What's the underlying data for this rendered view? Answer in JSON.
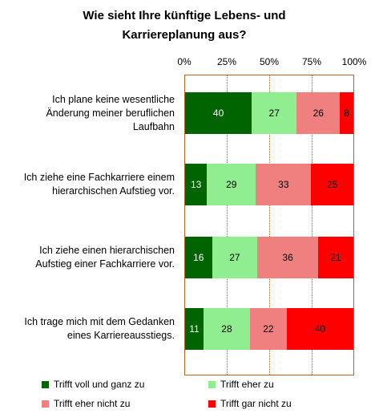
{
  "chart_data": {
    "type": "bar",
    "orientation": "horizontal",
    "stacked": true,
    "title": "Wie sieht Ihre künftige Lebens- und Karriereplanung aus?",
    "title_lines": [
      "Wie sieht Ihre künftige Lebens- und",
      "Karriereplanung aus?"
    ],
    "xlim": [
      0,
      100
    ],
    "x_ticks": [
      "0%",
      "25%",
      "50%",
      "75%",
      "100%"
    ],
    "categories": [
      "Ich plane keine wesentliche Änderung meiner beruflichen Laufbahn",
      "Ich ziehe eine Fachkarriere einem hierarchischen Aufstieg vor.",
      "Ich ziehe einen hierarchischen Aufstieg einer Fachkarriere vor.",
      "Ich trage mich mit dem Gedanken eines Karriereausstiegs."
    ],
    "category_lines": [
      [
        "Ich plane keine wesentliche",
        "Änderung meiner beruflichen",
        "Laufbahn"
      ],
      [
        "Ich ziehe eine Fachkarriere einem",
        "hierarchischen Aufstieg vor."
      ],
      [
        "Ich ziehe einen hierarchischen",
        "Aufstieg einer Fachkarriere vor."
      ],
      [
        "Ich trage mich mit dem Gedanken",
        "eines Karriereausstiegs."
      ]
    ],
    "series": [
      {
        "name": "Trifft voll und ganz zu",
        "color": "#006400",
        "label_color": "#ffffff",
        "values": [
          40,
          13,
          16,
          11
        ]
      },
      {
        "name": "Trifft eher zu",
        "color": "#90ee90",
        "label_color": "#000000",
        "values": [
          27,
          29,
          27,
          28
        ]
      },
      {
        "name": "Trifft eher nicht zu",
        "color": "#f08080",
        "label_color": "#000000",
        "values": [
          26,
          33,
          36,
          22
        ]
      },
      {
        "name": "Trifft gar nicht zu",
        "color": "#ff0000",
        "label_color": "#000000",
        "values": [
          8,
          25,
          21,
          40
        ]
      }
    ],
    "grid": true,
    "legend_position": "bottom"
  }
}
